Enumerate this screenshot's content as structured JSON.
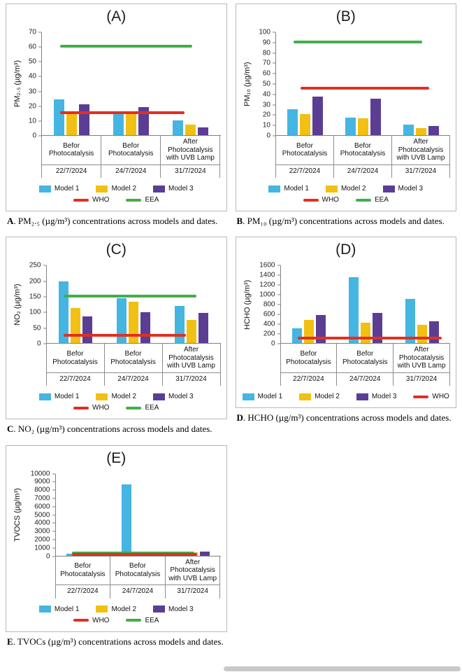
{
  "colors": {
    "model1": "#45B5E2",
    "model2": "#F2C012",
    "model3": "#5C3D94",
    "who": "#E03022",
    "eea": "#42AE49",
    "axis": "#808080",
    "box_border": "#b9b9b9"
  },
  "categories": [
    {
      "label": "Befor Photocatalysis",
      "date": "22/7/2024"
    },
    {
      "label": "Befor Photocatalysis",
      "date": "24/7/2024"
    },
    {
      "label": "After Photocatalysis with UVB Lamp",
      "date": "31/7/2024"
    }
  ],
  "chart_data": [
    {
      "panel": "A",
      "type": "bar",
      "title": "(A)",
      "ylabel": "PM₂.₅ (µg/m³)",
      "ylim": [
        0,
        70
      ],
      "yticks": [
        0,
        10,
        20,
        30,
        40,
        50,
        60,
        70
      ],
      "series": [
        {
          "name": "Model 1",
          "color": "model1",
          "values": [
            24,
            15,
            10
          ]
        },
        {
          "name": "Model 2",
          "color": "model2",
          "values": [
            16,
            15,
            7
          ]
        },
        {
          "name": "Model 3",
          "color": "model3",
          "values": [
            21,
            19,
            5
          ]
        }
      ],
      "ref_lines": [
        {
          "name": "EEA",
          "color": "eea",
          "value": 60,
          "span": [
            0.1,
            0.84
          ]
        },
        {
          "name": "WHO",
          "color": "who",
          "value": 15,
          "span": [
            0.1,
            0.8
          ]
        }
      ],
      "legend_rows": [
        [
          {
            "label": "Model 1",
            "swatch": "bar",
            "color": "model1"
          },
          {
            "label": "Model 2",
            "swatch": "bar",
            "color": "model2"
          },
          {
            "label": "Model 3",
            "swatch": "bar",
            "color": "model3"
          }
        ],
        [
          {
            "label": "WHO",
            "swatch": "line",
            "color": "who"
          },
          {
            "label": "EEA",
            "swatch": "line",
            "color": "eea"
          }
        ]
      ],
      "caption": {
        "prefix": "A",
        "text": ". PM₂.₅ (µg/m³) concentrations across models and dates."
      }
    },
    {
      "panel": "B",
      "type": "bar",
      "title": "(B)",
      "ylabel": "PM₁₀ (µg/m³)",
      "ylim": [
        0,
        100
      ],
      "yticks": [
        0,
        10,
        20,
        30,
        40,
        50,
        60,
        70,
        80,
        90,
        100
      ],
      "series": [
        {
          "name": "Model 1",
          "color": "model1",
          "values": [
            25,
            17,
            10
          ]
        },
        {
          "name": "Model 2",
          "color": "model2",
          "values": [
            20,
            16,
            7
          ]
        },
        {
          "name": "Model 3",
          "color": "model3",
          "values": [
            37,
            35,
            9
          ]
        }
      ],
      "ref_lines": [
        {
          "name": "EEA",
          "color": "eea",
          "value": 90,
          "span": [
            0.1,
            0.84
          ]
        },
        {
          "name": "WHO",
          "color": "who",
          "value": 45,
          "span": [
            0.14,
            0.88
          ]
        }
      ],
      "legend_rows": [
        [
          {
            "label": "Model 1",
            "swatch": "bar",
            "color": "model1"
          },
          {
            "label": "Model 2",
            "swatch": "bar",
            "color": "model2"
          },
          {
            "label": "Model 3",
            "swatch": "bar",
            "color": "model3"
          }
        ],
        [
          {
            "label": "WHO",
            "swatch": "line",
            "color": "who"
          },
          {
            "label": "EEA",
            "swatch": "line",
            "color": "eea"
          }
        ]
      ],
      "caption": {
        "prefix": "B",
        "text": ". PM₁₀ (µg/m³) concentrations across models and dates."
      }
    },
    {
      "panel": "C",
      "type": "bar",
      "title": "(C)",
      "ylabel": "NO₂  (µg/m³)",
      "ylim": [
        0,
        250
      ],
      "yticks": [
        0,
        50,
        100,
        150,
        200,
        250
      ],
      "series": [
        {
          "name": "Model 1",
          "color": "model1",
          "values": [
            197,
            143,
            118
          ]
        },
        {
          "name": "Model 2",
          "color": "model2",
          "values": [
            113,
            133,
            75
          ]
        },
        {
          "name": "Model 3",
          "color": "model3",
          "values": [
            85,
            98,
            97
          ]
        }
      ],
      "ref_lines": [
        {
          "name": "EEA",
          "color": "eea",
          "value": 150,
          "span": [
            0.1,
            0.86
          ]
        },
        {
          "name": "WHO",
          "color": "who",
          "value": 25,
          "span": [
            0.1,
            0.8
          ]
        }
      ],
      "legend_rows": [
        [
          {
            "label": "Model 1",
            "swatch": "bar",
            "color": "model1"
          },
          {
            "label": "Model 2",
            "swatch": "bar",
            "color": "model2"
          },
          {
            "label": "Model 3",
            "swatch": "bar",
            "color": "model3"
          }
        ],
        [
          {
            "label": "WHO",
            "swatch": "line",
            "color": "who"
          },
          {
            "label": "EEA",
            "swatch": "line",
            "color": "eea"
          }
        ]
      ],
      "caption": {
        "prefix": "C",
        "text": ". NO₂ (µg/m³) concentrations across models and dates."
      }
    },
    {
      "panel": "D",
      "type": "bar",
      "title": "(D)",
      "ylabel": "HCHO (µg/m³)",
      "ylim": [
        0,
        1600
      ],
      "yticks": [
        0,
        200,
        400,
        600,
        800,
        1000,
        1200,
        1400,
        1600
      ],
      "series": [
        {
          "name": "Model 1",
          "color": "model1",
          "values": [
            300,
            1350,
            900
          ]
        },
        {
          "name": "Model 2",
          "color": "model2",
          "values": [
            480,
            420,
            380
          ]
        },
        {
          "name": "Model 3",
          "color": "model3",
          "values": [
            580,
            620,
            450
          ]
        }
      ],
      "ref_lines": [
        {
          "name": "WHO",
          "color": "who",
          "value": 100,
          "span": [
            0.1,
            0.95
          ]
        }
      ],
      "legend_rows": [
        [
          {
            "label": "Model 1",
            "swatch": "bar",
            "color": "model1"
          },
          {
            "label": "Model 2",
            "swatch": "bar",
            "color": "model2"
          },
          {
            "label": "Model 3",
            "swatch": "bar",
            "color": "model3"
          },
          {
            "label": "WHO",
            "swatch": "line",
            "color": "who"
          }
        ]
      ],
      "caption": {
        "prefix": "D",
        "text": ". HCHO (µg/m³) concentrations across models and dates."
      }
    },
    {
      "panel": "E",
      "type": "bar",
      "title": "(E)",
      "ylabel": "TVOCS (µg/m³)",
      "ylim": [
        0,
        10000
      ],
      "yticks": [
        0,
        1000,
        2000,
        3000,
        4000,
        5000,
        6000,
        7000,
        8000,
        9000,
        10000
      ],
      "series": [
        {
          "name": "Model 1",
          "color": "model1",
          "values": [
            230,
            8600,
            300
          ]
        },
        {
          "name": "Model 2",
          "color": "model2",
          "values": [
            160,
            260,
            350
          ]
        },
        {
          "name": "Model 3",
          "color": "model3",
          "values": [
            160,
            220,
            500
          ]
        }
      ],
      "ref_lines": [
        {
          "name": "EEA",
          "color": "eea",
          "value": 300,
          "span": [
            0.1,
            0.84
          ]
        },
        {
          "name": "WHO",
          "color": "who",
          "value": 150,
          "span": [
            0.1,
            0.86
          ]
        }
      ],
      "legend_rows": [
        [
          {
            "label": "Model 1",
            "swatch": "bar",
            "color": "model1"
          },
          {
            "label": "Model 2",
            "swatch": "bar",
            "color": "model2"
          },
          {
            "label": "Model 3",
            "swatch": "bar",
            "color": "model3"
          }
        ],
        [
          {
            "label": "WHO",
            "swatch": "line",
            "color": "who"
          },
          {
            "label": "EEA",
            "swatch": "line",
            "color": "eea"
          }
        ]
      ],
      "caption": {
        "prefix": "E",
        "text": ". TVOCs (µg/m³) concentrations across models and dates."
      }
    }
  ]
}
